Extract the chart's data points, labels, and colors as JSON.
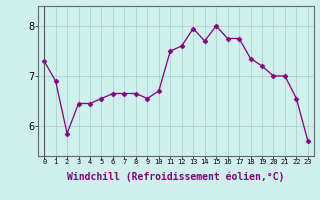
{
  "x": [
    0,
    1,
    2,
    3,
    4,
    5,
    6,
    7,
    8,
    9,
    10,
    11,
    12,
    13,
    14,
    15,
    16,
    17,
    18,
    19,
    20,
    21,
    22,
    23
  ],
  "y": [
    7.3,
    6.9,
    5.85,
    6.45,
    6.45,
    6.55,
    6.65,
    6.65,
    6.65,
    6.55,
    6.7,
    7.5,
    7.6,
    7.95,
    7.7,
    8.0,
    7.75,
    7.75,
    7.35,
    7.2,
    7.0,
    7.0,
    6.55,
    5.7
  ],
  "line_color": "#800080",
  "marker": "D",
  "marker_size": 2.5,
  "bg_color": "#cff0ec",
  "grid_color": "#aacccc",
  "xlabel": "Windchill (Refroidissement éolien,°C)",
  "xlabel_fontsize": 7,
  "yticks": [
    6,
    7,
    8
  ],
  "ylim": [
    5.4,
    8.4
  ],
  "xlim": [
    -0.5,
    23.5
  ],
  "xtick_labels": [
    "0",
    "1",
    "2",
    "3",
    "4",
    "5",
    "6",
    "7",
    "8",
    "9",
    "10",
    "11",
    "12",
    "13",
    "14",
    "15",
    "16",
    "17",
    "18",
    "19",
    "20",
    "21",
    "22",
    "23"
  ],
  "ytick_fontsize": 7,
  "xtick_fontsize": 5
}
